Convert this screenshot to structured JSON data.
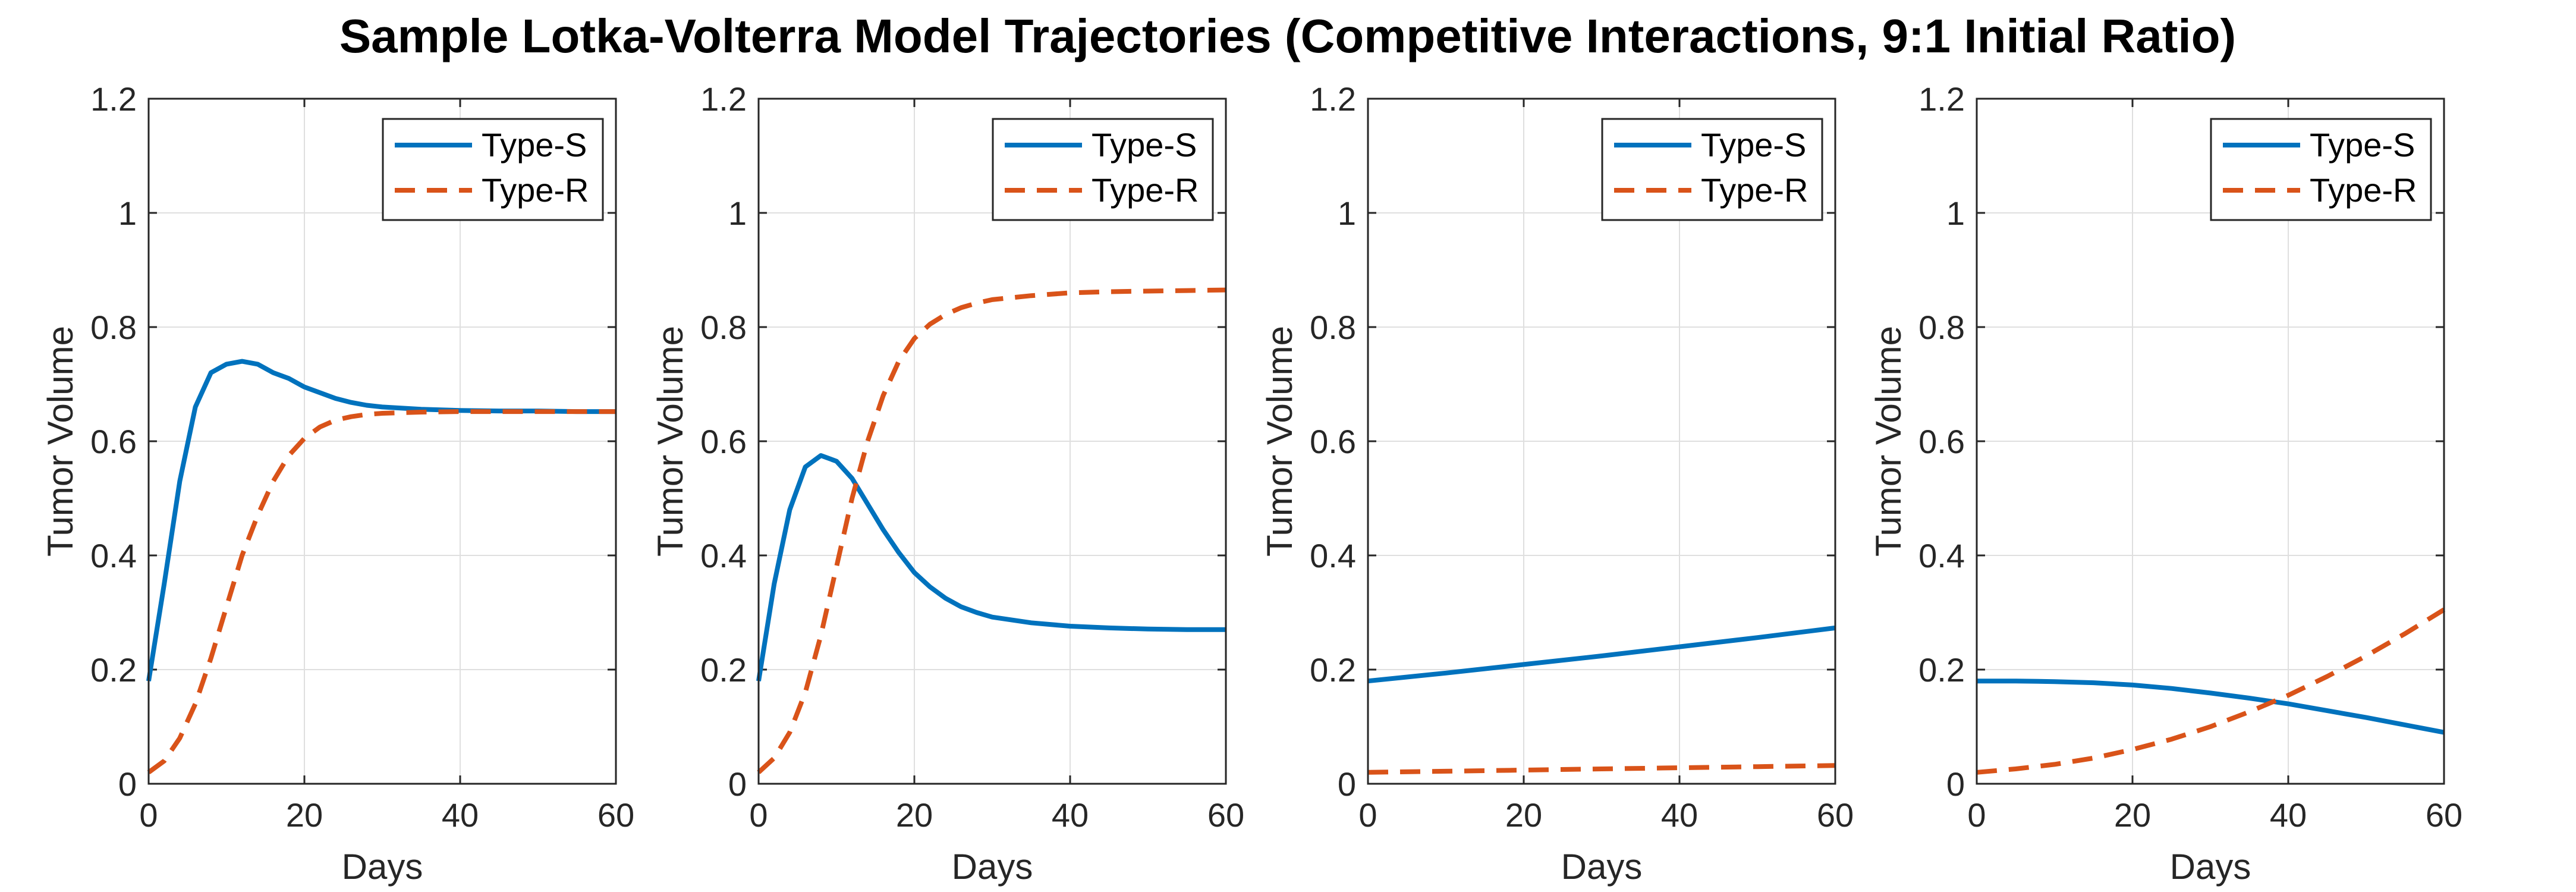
{
  "figure": {
    "title": "Sample Lotka-Volterra Model Trajectories (Competitive Interactions, 9:1 Initial Ratio)"
  },
  "colors": {
    "type_s": "#0072BD",
    "type_r": "#D95319",
    "axis": "#262626",
    "grid": "#DFDFDF"
  },
  "chart_data": [
    {
      "type": "line",
      "xlabel": "Days",
      "ylabel": "Tumor Volume",
      "xlim": [
        0,
        60
      ],
      "ylim": [
        0,
        1.2
      ],
      "xticks": [
        0,
        20,
        40,
        60
      ],
      "yticks": [
        0,
        0.2,
        0.4,
        0.6,
        0.8,
        1,
        1.2
      ],
      "xtick_labels": [
        "0",
        "20",
        "40",
        "60"
      ],
      "ytick_labels": [
        "0",
        "0.2",
        "0.4",
        "0.6",
        "0.8",
        "1",
        "1.2"
      ],
      "grid": true,
      "legend_position": "top-right",
      "x": [
        0,
        2,
        4,
        6,
        8,
        10,
        12,
        14,
        16,
        18,
        20,
        22,
        24,
        26,
        28,
        30,
        35,
        40,
        45,
        50,
        55,
        60
      ],
      "series": [
        {
          "name": "Type-S",
          "style": "solid",
          "values": [
            0.18,
            0.35,
            0.53,
            0.66,
            0.72,
            0.735,
            0.74,
            0.735,
            0.72,
            0.71,
            0.695,
            0.685,
            0.675,
            0.668,
            0.663,
            0.66,
            0.656,
            0.654,
            0.653,
            0.653,
            0.652,
            0.652
          ]
        },
        {
          "name": "Type-R",
          "style": "dashed",
          "values": [
            0.02,
            0.04,
            0.08,
            0.14,
            0.22,
            0.31,
            0.4,
            0.47,
            0.53,
            0.575,
            0.605,
            0.625,
            0.637,
            0.643,
            0.647,
            0.649,
            0.651,
            0.652,
            0.652,
            0.652,
            0.652,
            0.652
          ]
        }
      ]
    },
    {
      "type": "line",
      "xlabel": "Days",
      "ylabel": "Tumor Volume",
      "xlim": [
        0,
        60
      ],
      "ylim": [
        0,
        1.2
      ],
      "xticks": [
        0,
        20,
        40,
        60
      ],
      "yticks": [
        0,
        0.2,
        0.4,
        0.6,
        0.8,
        1,
        1.2
      ],
      "xtick_labels": [
        "0",
        "20",
        "40",
        "60"
      ],
      "ytick_labels": [
        "0",
        "0.2",
        "0.4",
        "0.6",
        "0.8",
        "1",
        "1.2"
      ],
      "grid": true,
      "legend_position": "top-right",
      "x": [
        0,
        2,
        4,
        6,
        8,
        10,
        12,
        14,
        16,
        18,
        20,
        22,
        24,
        26,
        28,
        30,
        35,
        40,
        45,
        50,
        55,
        60
      ],
      "series": [
        {
          "name": "Type-S",
          "style": "solid",
          "values": [
            0.18,
            0.35,
            0.48,
            0.555,
            0.575,
            0.565,
            0.535,
            0.49,
            0.445,
            0.405,
            0.37,
            0.345,
            0.325,
            0.31,
            0.3,
            0.292,
            0.282,
            0.276,
            0.273,
            0.271,
            0.27,
            0.27
          ]
        },
        {
          "name": "Type-R",
          "style": "dashed",
          "values": [
            0.02,
            0.045,
            0.09,
            0.16,
            0.26,
            0.38,
            0.5,
            0.6,
            0.68,
            0.74,
            0.78,
            0.805,
            0.822,
            0.834,
            0.842,
            0.848,
            0.855,
            0.86,
            0.862,
            0.863,
            0.864,
            0.865
          ]
        }
      ]
    },
    {
      "type": "line",
      "xlabel": "Days",
      "ylabel": "Tumor Volume",
      "xlim": [
        0,
        60
      ],
      "ylim": [
        0,
        1.2
      ],
      "xticks": [
        0,
        20,
        40,
        60
      ],
      "yticks": [
        0,
        0.2,
        0.4,
        0.6,
        0.8,
        1,
        1.2
      ],
      "xtick_labels": [
        "0",
        "20",
        "40",
        "60"
      ],
      "ytick_labels": [
        "0",
        "0.2",
        "0.4",
        "0.6",
        "0.8",
        "1",
        "1.2"
      ],
      "grid": true,
      "legend_position": "top-right",
      "x": [
        0,
        10,
        20,
        30,
        40,
        50,
        60
      ],
      "series": [
        {
          "name": "Type-S",
          "style": "solid",
          "values": [
            0.18,
            0.194,
            0.209,
            0.224,
            0.24,
            0.256,
            0.273
          ]
        },
        {
          "name": "Type-R",
          "style": "dashed",
          "values": [
            0.02,
            0.022,
            0.024,
            0.026,
            0.028,
            0.03,
            0.032
          ]
        }
      ]
    },
    {
      "type": "line",
      "xlabel": "Days",
      "ylabel": "Tumor Volume",
      "xlim": [
        0,
        60
      ],
      "ylim": [
        0,
        1.2
      ],
      "xticks": [
        0,
        20,
        40,
        60
      ],
      "yticks": [
        0,
        0.2,
        0.4,
        0.6,
        0.8,
        1,
        1.2
      ],
      "xtick_labels": [
        "0",
        "20",
        "40",
        "60"
      ],
      "ytick_labels": [
        "0",
        "0.2",
        "0.4",
        "0.6",
        "0.8",
        "1",
        "1.2"
      ],
      "grid": true,
      "legend_position": "top-right",
      "x": [
        0,
        5,
        10,
        15,
        20,
        25,
        30,
        35,
        40,
        45,
        50,
        55,
        60
      ],
      "series": [
        {
          "name": "Type-S",
          "style": "solid",
          "values": [
            0.18,
            0.18,
            0.179,
            0.177,
            0.173,
            0.167,
            0.159,
            0.15,
            0.14,
            0.128,
            0.116,
            0.103,
            0.09
          ]
        },
        {
          "name": "Type-R",
          "style": "dashed",
          "values": [
            0.02,
            0.026,
            0.034,
            0.045,
            0.06,
            0.078,
            0.1,
            0.126,
            0.155,
            0.188,
            0.224,
            0.263,
            0.305
          ]
        }
      ]
    }
  ]
}
